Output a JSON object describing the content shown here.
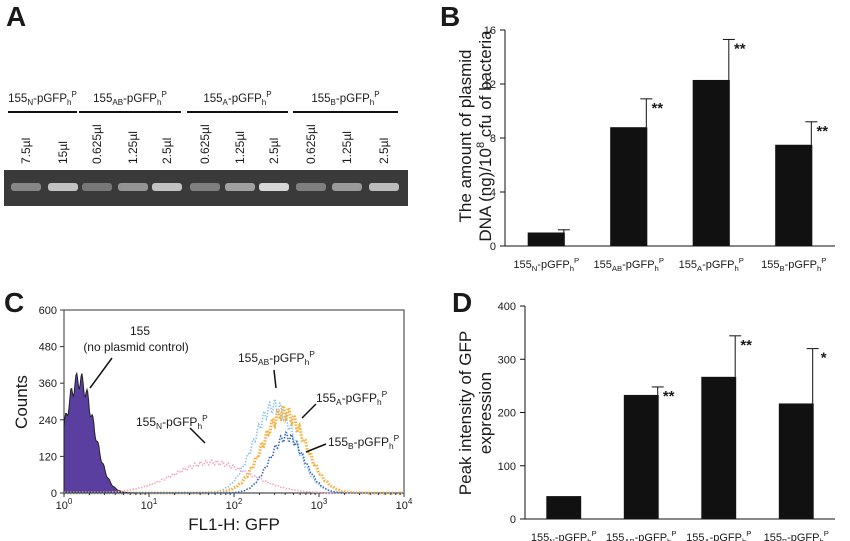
{
  "panels": {
    "A": {
      "letter": "A",
      "groups": [
        {
          "main": "155",
          "sub": "N",
          "tail": "-pGFP",
          "subh": "h",
          "supP": "P"
        },
        {
          "main": "155",
          "sub": "AB",
          "tail": "-pGFP",
          "subh": "h",
          "supP": "P"
        },
        {
          "main": "155",
          "sub": "A",
          "tail": "-pGFP",
          "subh": "h",
          "supP": "P"
        },
        {
          "main": "155",
          "sub": "B",
          "tail": "-pGFP",
          "subh": "h",
          "supP": "P"
        }
      ],
      "lanes": [
        "7.5µl",
        "15µl",
        "0.625µl",
        "1.25µl",
        "2.5µl",
        "0.625µl",
        "1.25µl",
        "2.5µl",
        "0.625µl",
        "1.25µl",
        "2.5µl"
      ],
      "band_intensity": [
        0.35,
        0.8,
        0.25,
        0.45,
        0.8,
        0.3,
        0.55,
        0.95,
        0.3,
        0.5,
        0.75
      ]
    },
    "B": {
      "letter": "B",
      "chart_data": {
        "type": "bar",
        "categories": [
          {
            "main": "155",
            "sub": "N",
            "tail": "-pGFP",
            "subh": "h",
            "supP": "P"
          },
          {
            "main": "155",
            "sub": "AB",
            "tail": "-pGFP",
            "subh": "h",
            "supP": "P"
          },
          {
            "main": "155",
            "sub": "A",
            "tail": "-pGFP",
            "subh": "h",
            "supP": "P"
          },
          {
            "main": "155",
            "sub": "B",
            "tail": "-pGFP",
            "subh": "h",
            "supP": "P"
          }
        ],
        "values": [
          1.0,
          8.8,
          12.3,
          7.5
        ],
        "errors": [
          0.2,
          2.1,
          3.0,
          1.7
        ],
        "significance": [
          "",
          "**",
          "**",
          "**"
        ],
        "ylim": [
          0,
          16
        ],
        "yticks": [
          0,
          4,
          8,
          12,
          16
        ],
        "ylabel_line1": "The amount of plasmid",
        "ylabel_line2_pre": "DNA (ng)/10",
        "ylabel_line2_sup": "8",
        "ylabel_line2_post": " cfu of bacteria"
      }
    },
    "C": {
      "letter": "C",
      "chart_data": {
        "type": "area",
        "xscale": "log",
        "xlim": [
          1,
          10000
        ],
        "xticks": [
          {
            "base": "10",
            "exp": "0"
          },
          {
            "base": "10",
            "exp": "1"
          },
          {
            "base": "10",
            "exp": "2"
          },
          {
            "base": "10",
            "exp": "3"
          },
          {
            "base": "10",
            "exp": "4"
          }
        ],
        "ylim": [
          0,
          600
        ],
        "yticks": [
          0,
          120,
          240,
          360,
          480,
          600
        ],
        "xlabel": "FL1-H: GFP",
        "ylabel": "Counts",
        "series": [
          {
            "name": "155 (no plasmid control)",
            "color": "#5b3fa0",
            "peak_x": 1.5,
            "peak_y": 370,
            "log_sigma": 0.17
          },
          {
            "name": "155N-pGFPhP",
            "color": "#f2a6c8",
            "peak_x": 55,
            "peak_y": 100,
            "log_sigma": 0.45
          },
          {
            "name": "155AB-pGFPhP",
            "color": "#8cc8e6",
            "peak_x": 300,
            "peak_y": 285,
            "log_sigma": 0.24
          },
          {
            "name": "155A-pGFPhP",
            "color": "#f5b041",
            "peak_x": 390,
            "peak_y": 265,
            "log_sigma": 0.25
          },
          {
            "name": "155B-pGFPhP",
            "color": "#3a68b8",
            "peak_x": 420,
            "peak_y": 185,
            "log_sigma": 0.2
          }
        ],
        "annotations": [
          {
            "main": "155"
          },
          {
            "main": "(no plasmid control)"
          },
          {
            "main": "155",
            "sub": "N",
            "tail": "-pGFP",
            "subh": "h",
            "supP": "P"
          },
          {
            "main": "155",
            "sub": "AB",
            "tail": "-pGFP",
            "subh": "h",
            "supP": "P"
          },
          {
            "main": "155",
            "sub": "A",
            "tail": "-pGFP",
            "subh": "h",
            "supP": "P"
          },
          {
            "main": "155",
            "sub": "B",
            "tail": "-pGFP",
            "subh": "h",
            "supP": "P"
          }
        ]
      }
    },
    "D": {
      "letter": "D",
      "chart_data": {
        "type": "bar",
        "categories": [
          {
            "main": "155",
            "sub": "N",
            "tail": "-pGFP",
            "subh": "h",
            "supP": "P"
          },
          {
            "main": "155",
            "sub": "AB",
            "tail": "-pGFP",
            "subh": "h",
            "supP": "P"
          },
          {
            "main": "155",
            "sub": "A",
            "tail": "-pGFP",
            "subh": "h",
            "supP": "P"
          },
          {
            "main": "155",
            "sub": "B",
            "tail": "-pGFP",
            "subh": "h",
            "supP": "P"
          }
        ],
        "values": [
          43,
          233,
          267,
          217
        ],
        "errors": [
          0,
          15,
          77,
          103
        ],
        "significance": [
          "",
          "**",
          "**",
          "*"
        ],
        "ylim": [
          0,
          400
        ],
        "yticks": [
          0,
          100,
          200,
          300,
          400
        ],
        "ylabel_line1": "Peak intensity of GFP",
        "ylabel_line2": "expression"
      }
    }
  }
}
